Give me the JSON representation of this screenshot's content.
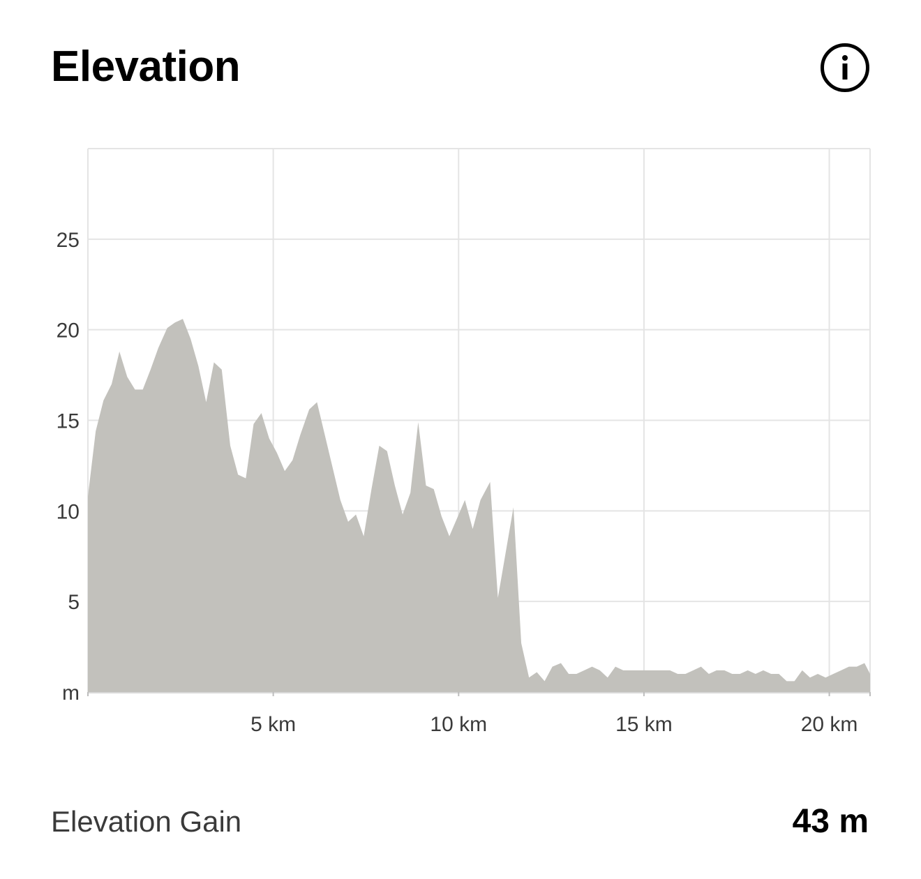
{
  "header": {
    "title": "Elevation",
    "info_icon": "info-circle-icon"
  },
  "footer": {
    "label": "Elevation Gain",
    "value": "43 m"
  },
  "colors": {
    "area_fill": "#c2c1bc",
    "grid": "#e4e4e4",
    "text": "#3a3a3a"
  },
  "chart_data": {
    "type": "area",
    "title": "Elevation",
    "xlabel": "",
    "ylabel": "",
    "y_unit_label": "m",
    "x_unit": "km",
    "xlim": [
      0,
      21.1
    ],
    "ylim": [
      0,
      30
    ],
    "grid": true,
    "legend": "none",
    "x_ticks": [
      {
        "value": 5,
        "label": "5 km"
      },
      {
        "value": 10,
        "label": "10 km"
      },
      {
        "value": 15,
        "label": "15 km"
      },
      {
        "value": 20,
        "label": "20 km"
      }
    ],
    "y_ticks": [
      {
        "value": 0,
        "label": "m"
      },
      {
        "value": 5,
        "label": "5"
      },
      {
        "value": 10,
        "label": "10"
      },
      {
        "value": 15,
        "label": "15"
      },
      {
        "value": 20,
        "label": "20"
      },
      {
        "value": 25,
        "label": "25"
      }
    ],
    "series": [
      {
        "x": [
          0.0,
          0.21,
          0.42,
          0.64,
          0.85,
          1.06,
          1.27,
          1.48,
          1.69,
          1.9,
          2.14,
          2.35,
          2.56,
          2.77,
          2.98,
          3.19,
          3.4,
          3.61,
          3.84,
          4.05,
          4.26,
          4.47,
          4.68,
          4.89,
          5.1,
          5.31,
          5.52,
          5.73,
          5.97,
          6.18,
          6.39,
          6.6,
          6.81,
          7.02,
          7.23,
          7.44,
          7.65,
          7.86,
          8.07,
          8.28,
          8.49,
          8.7,
          8.91,
          9.12,
          9.33,
          9.54,
          9.75,
          9.96,
          10.17,
          10.38,
          10.59,
          10.85,
          11.06,
          11.27,
          11.48,
          11.69,
          11.9,
          12.11,
          12.32,
          12.53,
          12.76,
          12.97,
          13.18,
          13.39,
          13.6,
          13.81,
          14.02,
          14.23,
          14.44,
          14.65,
          14.86,
          15.07,
          15.28,
          15.49,
          15.7,
          15.91,
          16.12,
          16.33,
          16.54,
          16.75,
          16.96,
          17.17,
          17.38,
          17.59,
          17.8,
          18.01,
          18.22,
          18.43,
          18.64,
          18.85,
          19.06,
          19.27,
          19.48,
          19.69,
          19.9,
          20.11,
          20.32,
          20.53,
          20.74,
          20.95,
          21.1
        ],
        "values": [
          10.8,
          14.4,
          16.1,
          17.0,
          18.8,
          17.4,
          16.7,
          16.7,
          17.8,
          19.0,
          20.1,
          20.4,
          20.6,
          19.5,
          18.0,
          16.0,
          18.2,
          17.8,
          13.6,
          12.0,
          11.8,
          14.8,
          15.4,
          14.0,
          13.2,
          12.2,
          12.8,
          14.2,
          15.6,
          16.0,
          14.2,
          12.4,
          10.6,
          9.4,
          9.8,
          8.6,
          11.2,
          13.6,
          13.3,
          11.4,
          9.8,
          11.0,
          14.9,
          11.4,
          11.2,
          9.7,
          8.6,
          9.6,
          10.6,
          9.0,
          10.6,
          11.6,
          5.2,
          7.7,
          10.2,
          2.7,
          0.8,
          1.1,
          0.6,
          1.4,
          1.6,
          1.0,
          1.0,
          1.2,
          1.4,
          1.2,
          0.8,
          1.4,
          1.2,
          1.2,
          1.2,
          1.2,
          1.2,
          1.2,
          1.2,
          1.0,
          1.0,
          1.2,
          1.4,
          1.0,
          1.2,
          1.2,
          1.0,
          1.0,
          1.2,
          1.0,
          1.2,
          1.0,
          1.0,
          0.6,
          0.6,
          1.2,
          0.8,
          1.0,
          0.8,
          1.0,
          1.2,
          1.4,
          1.4,
          1.6,
          1.0
        ]
      }
    ]
  }
}
